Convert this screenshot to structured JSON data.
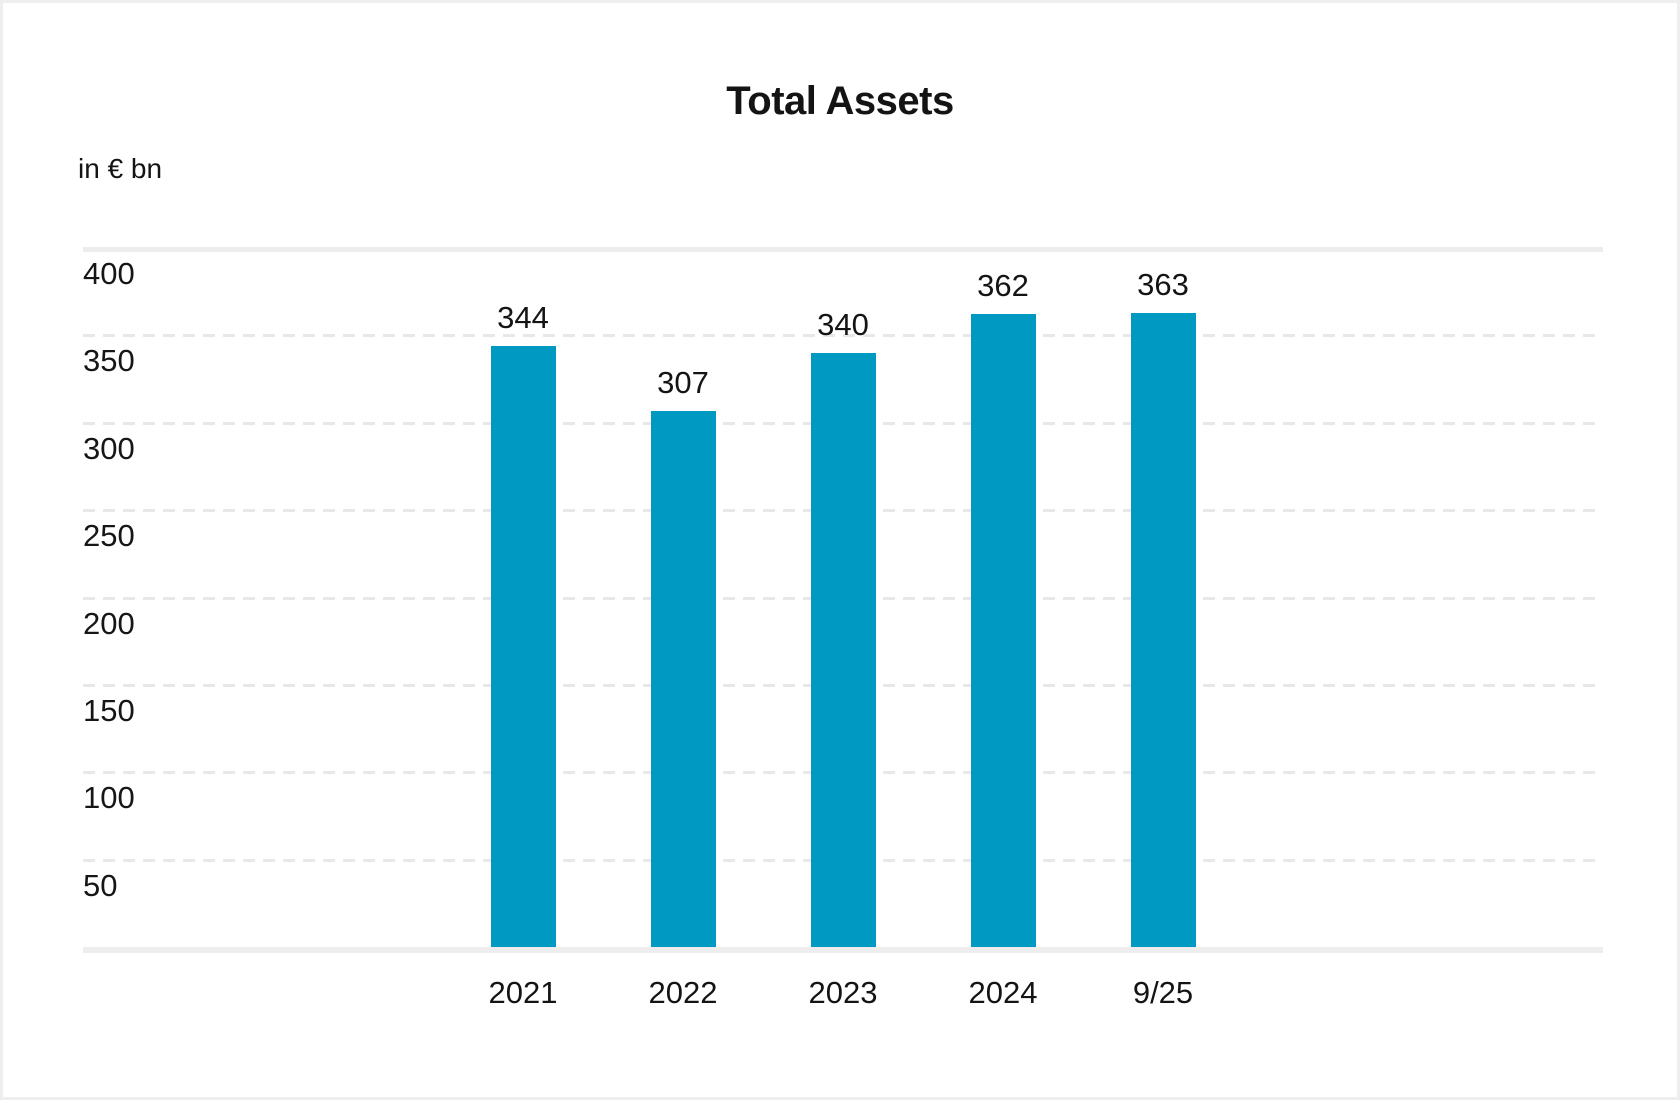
{
  "page": {
    "title": "Total Assets",
    "unit_label": "in € bn"
  },
  "chart_data": {
    "type": "bar",
    "title": "Total Assets",
    "ylabel": "in € bn",
    "xlabel": "",
    "categories": [
      "2021",
      "2022",
      "2023",
      "2024",
      "9/25"
    ],
    "values": [
      344,
      307,
      340,
      362,
      363
    ],
    "value_labels_shown": true,
    "ylim": [
      0,
      400
    ],
    "yticks": [
      50,
      100,
      150,
      200,
      250,
      300,
      350,
      400
    ],
    "grid": "horizontal dashed lines; solid light line at 400 and at baseline 0",
    "legend": "none",
    "bar_color": "#0099c2",
    "text_color": "#141414",
    "gridline_color": "#e8e8e8",
    "axis_line_color": "#ededed"
  }
}
